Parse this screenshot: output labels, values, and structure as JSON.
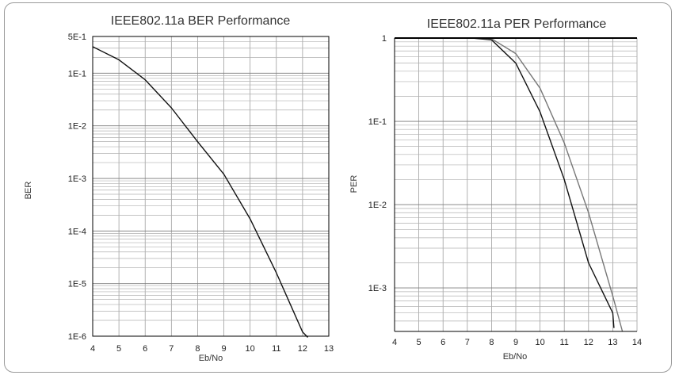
{
  "chart_data": [
    {
      "type": "line",
      "title": "IEEE802.11a BER Performance",
      "xlabel": "Eb/No",
      "ylabel": "BER",
      "xlim": [
        4,
        13
      ],
      "ylim": [
        1e-06,
        0.5
      ],
      "yscale": "log",
      "grid": true,
      "x_ticks": [
        "4",
        "5",
        "6",
        "7",
        "8",
        "9",
        "10",
        "11",
        "12",
        "13"
      ],
      "y_ticks": [
        "5E-1",
        "1E-1",
        "1E-2",
        "1E-3",
        "1E-4",
        "1E-5",
        "1E-6"
      ],
      "series": [
        {
          "color": "#111111",
          "x": [
            4,
            5,
            6,
            7,
            8,
            9,
            10,
            11,
            11.5,
            12,
            12.2
          ],
          "y": [
            0.32,
            0.18,
            0.075,
            0.022,
            0.005,
            0.0012,
            0.00017,
            1.6e-05,
            4.4e-06,
            1.2e-06,
            9.5e-07
          ]
        }
      ]
    },
    {
      "type": "line",
      "title": "IEEE802.11a PER Performance",
      "xlabel": "Eb/No",
      "ylabel": "PER",
      "xlim": [
        4,
        14
      ],
      "ylim": [
        0.0003,
        1
      ],
      "yscale": "log",
      "grid": true,
      "x_ticks": [
        "4",
        "5",
        "6",
        "7",
        "8",
        "9",
        "10",
        "11",
        "12",
        "13",
        "14"
      ],
      "y_ticks": [
        "1",
        "1E-1",
        "1E-2",
        "1E-3"
      ],
      "series": [
        {
          "color": "#111111",
          "x": [
            7.2,
            8,
            9,
            10,
            11,
            12,
            13,
            13.05
          ],
          "y": [
            1,
            0.95,
            0.5,
            0.13,
            0.02,
            0.002,
            0.0005,
            0.00033
          ]
        },
        {
          "color": "#777777",
          "x": [
            7.2,
            8,
            9,
            10,
            11,
            12,
            13,
            13.4
          ],
          "y": [
            1,
            0.98,
            0.65,
            0.25,
            0.055,
            0.008,
            0.0008,
            0.0003
          ]
        }
      ]
    }
  ]
}
